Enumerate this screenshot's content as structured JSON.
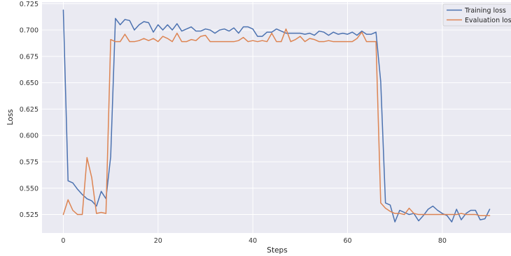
{
  "chart_data": {
    "type": "line",
    "title": "",
    "xlabel": "Steps",
    "ylabel": "Loss",
    "xlim": [
      -4.5,
      94.5
    ],
    "ylim": [
      0.5075,
      0.7265
    ],
    "xticks": [
      0,
      20,
      40,
      60,
      80
    ],
    "yticks": [
      0.525,
      0.55,
      0.575,
      0.6,
      0.625,
      0.65,
      0.675,
      0.7,
      0.725
    ],
    "ytick_labels": [
      "0.525",
      "0.550",
      "0.575",
      "0.600",
      "0.625",
      "0.650",
      "0.675",
      "0.700",
      "0.725"
    ],
    "grid": true,
    "legend_position": "top-right",
    "background": "#eaeaf2",
    "series": [
      {
        "name": "Training loss",
        "color": "#4c72b0",
        "x": [
          0,
          1,
          2,
          3,
          4,
          5,
          6,
          7,
          8,
          9,
          10,
          11,
          12,
          13,
          14,
          15,
          16,
          17,
          18,
          19,
          20,
          21,
          22,
          23,
          24,
          25,
          26,
          27,
          28,
          29,
          30,
          31,
          32,
          33,
          34,
          35,
          36,
          37,
          38,
          39,
          40,
          41,
          42,
          43,
          44,
          45,
          46,
          47,
          48,
          49,
          50,
          51,
          52,
          53,
          54,
          55,
          56,
          57,
          58,
          59,
          60,
          61,
          62,
          63,
          64,
          65,
          66,
          67,
          68,
          69,
          70,
          71,
          72,
          73,
          74,
          75,
          76,
          77,
          78,
          79,
          80,
          81,
          82,
          83,
          84,
          85,
          86,
          87,
          88,
          89,
          90
        ],
        "y": [
          0.719,
          0.557,
          0.555,
          0.549,
          0.544,
          0.54,
          0.538,
          0.533,
          0.547,
          0.54,
          0.58,
          0.711,
          0.705,
          0.71,
          0.709,
          0.7,
          0.705,
          0.708,
          0.707,
          0.698,
          0.705,
          0.7,
          0.705,
          0.7,
          0.706,
          0.699,
          0.701,
          0.703,
          0.699,
          0.699,
          0.701,
          0.7,
          0.697,
          0.7,
          0.701,
          0.699,
          0.702,
          0.697,
          0.703,
          0.703,
          0.701,
          0.694,
          0.694,
          0.698,
          0.698,
          0.701,
          0.699,
          0.697,
          0.697,
          0.697,
          0.697,
          0.696,
          0.697,
          0.695,
          0.699,
          0.698,
          0.695,
          0.698,
          0.696,
          0.697,
          0.696,
          0.698,
          0.695,
          0.699,
          0.696,
          0.696,
          0.698,
          0.651,
          0.536,
          0.534,
          0.518,
          0.529,
          0.527,
          0.525,
          0.526,
          0.519,
          0.524,
          0.53,
          0.533,
          0.529,
          0.526,
          0.524,
          0.518,
          0.53,
          0.52,
          0.526,
          0.529,
          0.529,
          0.52,
          0.521,
          0.53
        ]
      },
      {
        "name": "Evaluation loss",
        "color": "#dd8452",
        "x": [
          0,
          1,
          2,
          3,
          4,
          5,
          6,
          7,
          8,
          9,
          10,
          11,
          12,
          13,
          14,
          15,
          16,
          17,
          18,
          19,
          20,
          21,
          22,
          23,
          24,
          25,
          26,
          27,
          28,
          29,
          30,
          31,
          32,
          33,
          34,
          35,
          36,
          37,
          38,
          39,
          40,
          41,
          42,
          43,
          44,
          45,
          46,
          47,
          48,
          49,
          50,
          51,
          52,
          53,
          54,
          55,
          56,
          57,
          58,
          59,
          60,
          61,
          62,
          63,
          64,
          65,
          66,
          67,
          68,
          69,
          70,
          71,
          72,
          73,
          74,
          75,
          76,
          77,
          78,
          79,
          80,
          81,
          82,
          83,
          84,
          85,
          86,
          87,
          88,
          89,
          90
        ],
        "y": [
          0.525,
          0.539,
          0.529,
          0.525,
          0.525,
          0.579,
          0.56,
          0.526,
          0.527,
          0.526,
          0.691,
          0.689,
          0.689,
          0.696,
          0.689,
          0.689,
          0.69,
          0.692,
          0.69,
          0.692,
          0.689,
          0.694,
          0.692,
          0.689,
          0.697,
          0.689,
          0.689,
          0.691,
          0.69,
          0.694,
          0.695,
          0.689,
          0.689,
          0.689,
          0.689,
          0.689,
          0.689,
          0.69,
          0.693,
          0.689,
          0.69,
          0.689,
          0.69,
          0.689,
          0.697,
          0.689,
          0.689,
          0.701,
          0.689,
          0.691,
          0.694,
          0.689,
          0.692,
          0.691,
          0.689,
          0.689,
          0.69,
          0.689,
          0.689,
          0.689,
          0.689,
          0.689,
          0.692,
          0.698,
          0.689,
          0.689,
          0.689,
          0.536,
          0.531,
          0.528,
          0.526,
          0.526,
          0.525,
          0.531,
          0.526,
          0.525,
          0.525,
          0.525,
          0.525,
          0.525,
          0.525,
          0.525,
          0.525,
          0.525,
          0.526,
          0.525,
          0.525,
          0.525,
          0.524,
          0.524,
          0.524
        ]
      }
    ]
  }
}
